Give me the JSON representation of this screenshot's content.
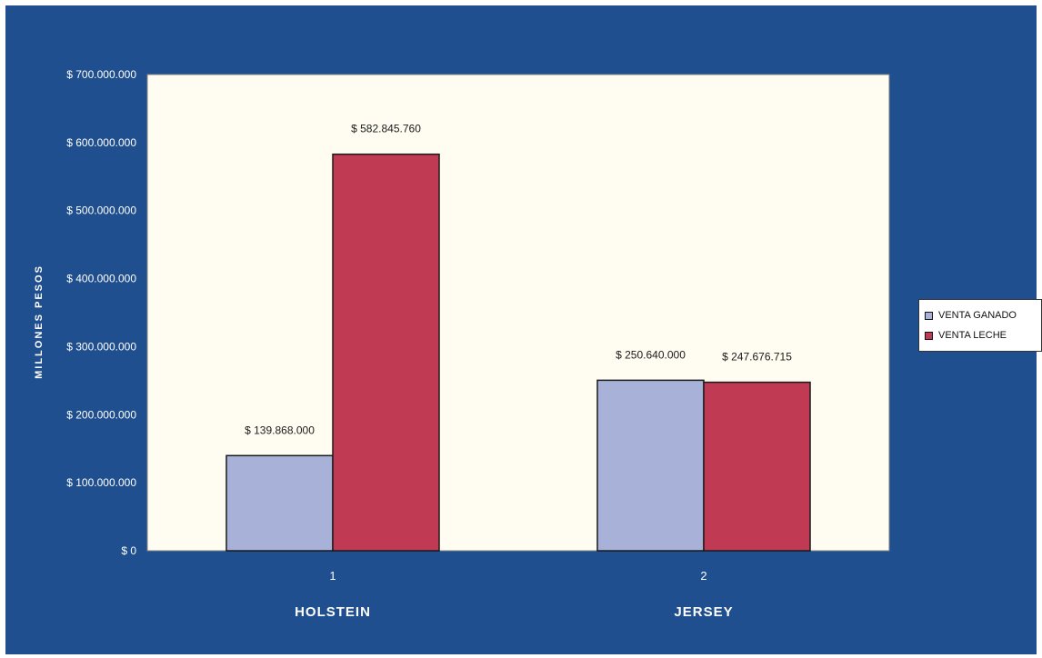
{
  "chart_data": {
    "type": "bar",
    "x_ticks": [
      "1",
      "2"
    ],
    "categories": [
      "HOLSTEIN",
      "JERSEY"
    ],
    "ylabel": "MILLONES PESOS",
    "ylim": [
      0,
      700000000
    ],
    "y_ticks": [
      {
        "value": 0,
        "label": "$ 0"
      },
      {
        "value": 100000000,
        "label": "$ 100.000.000"
      },
      {
        "value": 200000000,
        "label": "$ 200.000.000"
      },
      {
        "value": 300000000,
        "label": "$ 300.000.000"
      },
      {
        "value": 400000000,
        "label": "$ 400.000.000"
      },
      {
        "value": 500000000,
        "label": "$ 500.000.000"
      },
      {
        "value": 600000000,
        "label": "$ 600.000.000"
      },
      {
        "value": 700000000,
        "label": "$ 700.000.000"
      }
    ],
    "series": [
      {
        "name": "VENTA GANADO",
        "color": "#a8b1d8",
        "values": [
          139868000,
          250640000
        ],
        "labels": [
          "$ 139.868.000",
          "$ 250.640.000"
        ]
      },
      {
        "name": "VENTA LECHE",
        "color": "#bf3a52",
        "values": [
          582845760,
          247676715
        ],
        "labels": [
          "$ 582.845.760",
          "$ 247.676.715"
        ]
      }
    ],
    "legend_position": "right",
    "grid": false
  },
  "colors": {
    "background": "#1f4f8e",
    "plot_area": "#fffdf2"
  }
}
